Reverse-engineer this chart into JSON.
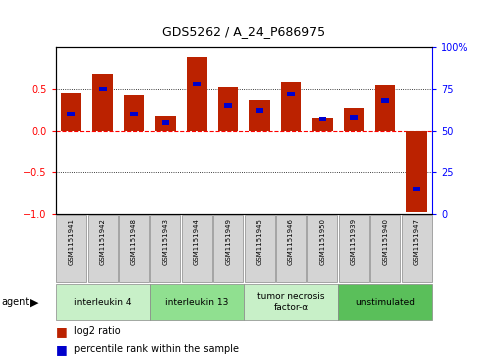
{
  "title": "GDS5262 / A_24_P686975",
  "samples": [
    "GSM1151941",
    "GSM1151942",
    "GSM1151948",
    "GSM1151943",
    "GSM1151944",
    "GSM1151949",
    "GSM1151945",
    "GSM1151946",
    "GSM1151950",
    "GSM1151939",
    "GSM1151940",
    "GSM1151947"
  ],
  "log2_ratio": [
    0.45,
    0.68,
    0.43,
    0.18,
    0.88,
    0.52,
    0.37,
    0.58,
    0.15,
    0.27,
    0.55,
    -0.97
  ],
  "percentile_rank": [
    60,
    75,
    60,
    55,
    78,
    65,
    62,
    72,
    57,
    58,
    68,
    15
  ],
  "agents": [
    {
      "label": "interleukin 4",
      "start": 0,
      "end": 3,
      "color": "#c8f0c8"
    },
    {
      "label": "interleukin 13",
      "start": 3,
      "end": 6,
      "color": "#90e090"
    },
    {
      "label": "tumor necrosis\nfactor-α",
      "start": 6,
      "end": 9,
      "color": "#c8f0c8"
    },
    {
      "label": "unstimulated",
      "start": 9,
      "end": 12,
      "color": "#5abf5a"
    }
  ],
  "bar_color_red": "#bb2200",
  "bar_color_blue": "#0000cc",
  "ylim_left": [
    -1,
    1
  ],
  "ylim_right": [
    0,
    100
  ],
  "yticks_left": [
    -1,
    -0.5,
    0,
    0.5
  ],
  "yticks_right": [
    0,
    25,
    50,
    75,
    100
  ],
  "background_color": "#ffffff"
}
